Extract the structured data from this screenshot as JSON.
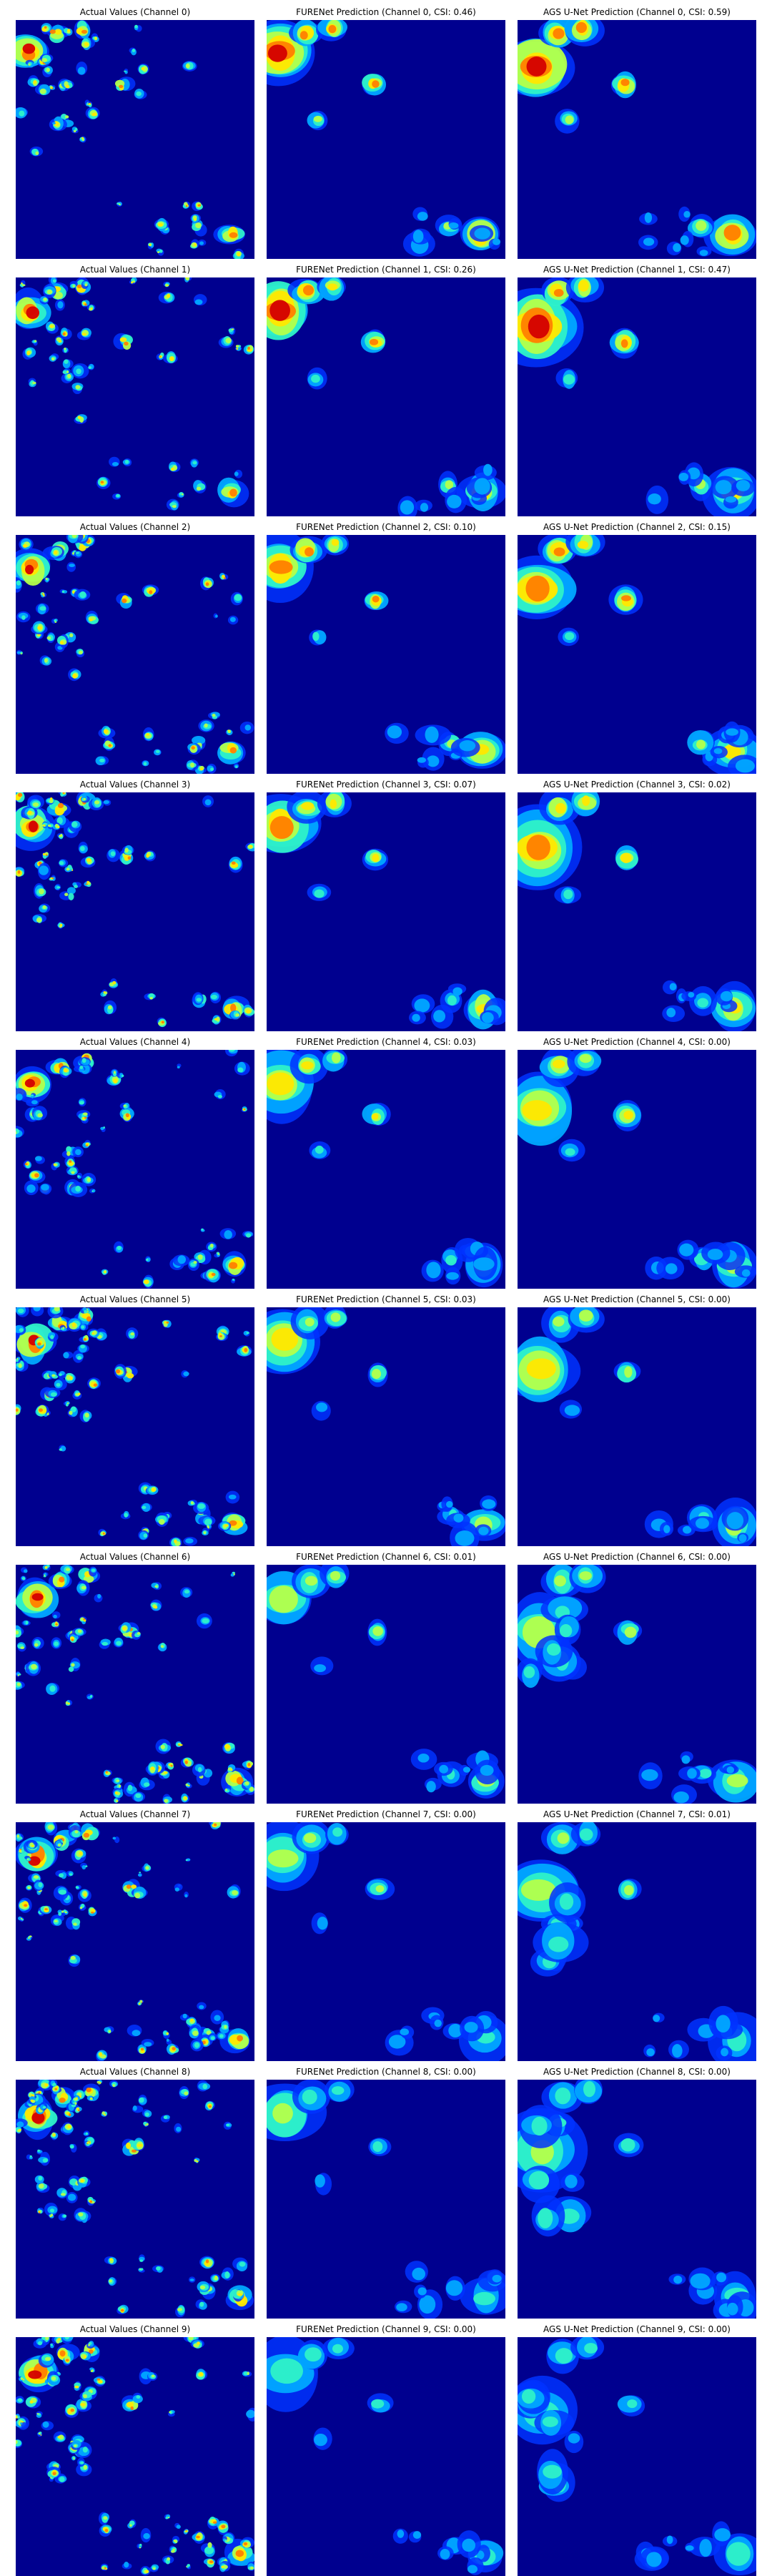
{
  "figure": {
    "colormap": "jet",
    "background_color": "#00008f",
    "rows": [
      {
        "channel": 0,
        "titles": [
          "Actual Values (Channel 0)",
          "FURENet Prediction (Channel 0, CSI: 0.46)",
          "AGS U-Net Prediction (Channel 0, CSI: 0.59)"
        ]
      },
      {
        "channel": 1,
        "titles": [
          "Actual Values (Channel 1)",
          "FURENet Prediction (Channel 1, CSI: 0.26)",
          "AGS U-Net Prediction (Channel 1, CSI: 0.47)"
        ]
      },
      {
        "channel": 2,
        "titles": [
          "Actual Values (Channel 2)",
          "FURENet Prediction (Channel 2, CSI: 0.10)",
          "AGS U-Net Prediction (Channel 2, CSI: 0.15)"
        ]
      },
      {
        "channel": 3,
        "titles": [
          "Actual Values (Channel 3)",
          "FURENet Prediction (Channel 3, CSI: 0.07)",
          "AGS U-Net Prediction (Channel 3, CSI: 0.02)"
        ]
      },
      {
        "channel": 4,
        "titles": [
          "Actual Values (Channel 4)",
          "FURENet Prediction (Channel 4, CSI: 0.03)",
          "AGS U-Net Prediction (Channel 4, CSI: 0.00)"
        ]
      },
      {
        "channel": 5,
        "titles": [
          "Actual Values (Channel 5)",
          "FURENet Prediction (Channel 5, CSI: 0.03)",
          "AGS U-Net Prediction (Channel 5, CSI: 0.00)"
        ]
      },
      {
        "channel": 6,
        "titles": [
          "Actual Values (Channel 6)",
          "FURENet Prediction (Channel 6, CSI: 0.01)",
          "AGS U-Net Prediction (Channel 6, CSI: 0.00)"
        ]
      },
      {
        "channel": 7,
        "titles": [
          "Actual Values (Channel 7)",
          "FURENet Prediction (Channel 7, CSI: 0.00)",
          "AGS U-Net Prediction (Channel 7, CSI: 0.01)"
        ]
      },
      {
        "channel": 8,
        "titles": [
          "Actual Values (Channel 8)",
          "FURENet Prediction (Channel 8, CSI: 0.00)",
          "AGS U-Net Prediction (Channel 8, CSI: 0.00)"
        ]
      },
      {
        "channel": 9,
        "titles": [
          "Actual Values (Channel 9)",
          "FURENet Prediction (Channel 9, CSI: 0.00)",
          "AGS U-Net Prediction (Channel 9, CSI: 0.00)"
        ]
      }
    ]
  }
}
